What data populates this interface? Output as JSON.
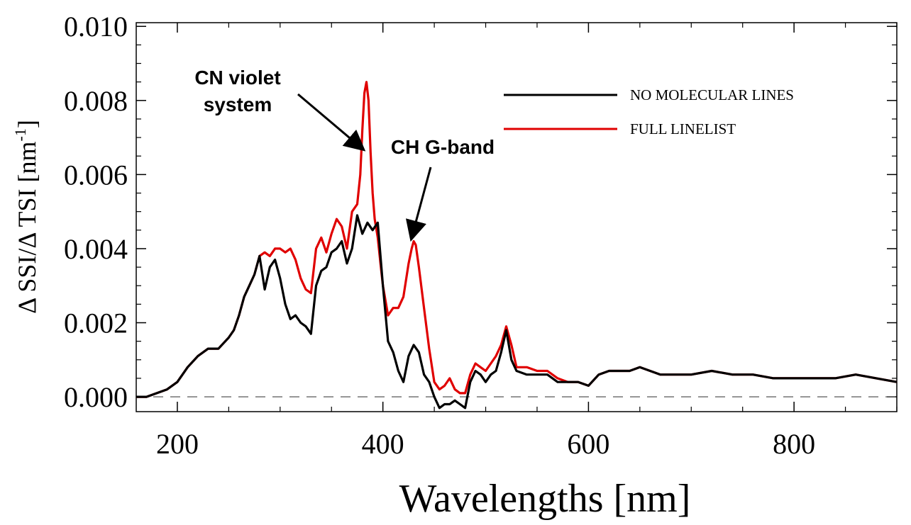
{
  "chart_data": {
    "type": "line",
    "xlabel": "Wavelengths [nm]",
    "ylabel": "Δ SSI/Δ TSI [nm",
    "ylabel_sup": "-1",
    "ylabel_end": "]",
    "xlim": [
      160,
      900
    ],
    "ylim": [
      -0.0004,
      0.0101
    ],
    "x_ticks": [
      200,
      400,
      600,
      800
    ],
    "y_ticks": [
      0.0,
      0.002,
      0.004,
      0.006,
      0.008,
      0.01
    ],
    "x_tick_labels": [
      "200",
      "400",
      "600",
      "800"
    ],
    "y_tick_labels": [
      "0.000",
      "0.002",
      "0.004",
      "0.006",
      "0.008",
      "0.010"
    ],
    "zero_line": {
      "y": 0,
      "style": "dashed"
    },
    "legend_position": "top-right",
    "series": [
      {
        "name": "NO MOLECULAR LINES",
        "color": "#000000",
        "x": [
          160,
          170,
          180,
          190,
          200,
          210,
          220,
          230,
          240,
          250,
          255,
          260,
          265,
          270,
          275,
          280,
          285,
          290,
          295,
          300,
          305,
          310,
          315,
          320,
          325,
          330,
          335,
          340,
          345,
          350,
          355,
          360,
          365,
          370,
          375,
          380,
          385,
          390,
          395,
          400,
          405,
          410,
          415,
          420,
          425,
          430,
          435,
          440,
          445,
          450,
          455,
          460,
          465,
          470,
          475,
          480,
          485,
          490,
          495,
          500,
          505,
          510,
          515,
          520,
          525,
          530,
          540,
          550,
          560,
          570,
          580,
          590,
          600,
          610,
          620,
          630,
          640,
          650,
          660,
          670,
          680,
          700,
          720,
          740,
          760,
          780,
          800,
          820,
          840,
          860,
          880,
          900
        ],
        "y": [
          0.0,
          0.0,
          0.0001,
          0.0002,
          0.0004,
          0.0008,
          0.0011,
          0.0013,
          0.0013,
          0.0016,
          0.0018,
          0.0022,
          0.0027,
          0.003,
          0.0033,
          0.0038,
          0.0029,
          0.0035,
          0.0037,
          0.0032,
          0.0025,
          0.0021,
          0.0022,
          0.002,
          0.0019,
          0.0017,
          0.003,
          0.0034,
          0.0035,
          0.0039,
          0.004,
          0.0042,
          0.0036,
          0.004,
          0.0049,
          0.0044,
          0.0047,
          0.0045,
          0.0047,
          0.003,
          0.0015,
          0.0012,
          0.0007,
          0.0004,
          0.0011,
          0.0014,
          0.0012,
          0.0006,
          0.0004,
          0.0,
          -0.0003,
          -0.0002,
          -0.0002,
          -0.0001,
          -0.0002,
          -0.0003,
          0.0004,
          0.0007,
          0.0006,
          0.0004,
          0.0006,
          0.0007,
          0.0012,
          0.0018,
          0.001,
          0.0007,
          0.0006,
          0.0006,
          0.0006,
          0.0004,
          0.0004,
          0.0004,
          0.0003,
          0.0006,
          0.0007,
          0.0007,
          0.0007,
          0.0008,
          0.0007,
          0.0006,
          0.0006,
          0.0006,
          0.0007,
          0.0006,
          0.0006,
          0.0005,
          0.0005,
          0.0005,
          0.0005,
          0.0006,
          0.0005,
          0.0004
        ]
      },
      {
        "name": "FULL LINELIST",
        "color": "#e00000",
        "x": [
          160,
          170,
          180,
          190,
          200,
          210,
          220,
          230,
          240,
          250,
          255,
          260,
          265,
          270,
          275,
          280,
          285,
          290,
          295,
          300,
          305,
          310,
          315,
          320,
          325,
          330,
          335,
          340,
          345,
          350,
          355,
          360,
          365,
          370,
          375,
          378,
          380,
          382,
          384,
          386,
          388,
          390,
          392,
          395,
          398,
          400,
          405,
          410,
          415,
          420,
          425,
          428,
          430,
          432,
          435,
          440,
          445,
          450,
          455,
          460,
          465,
          470,
          475,
          480,
          485,
          490,
          495,
          500,
          505,
          510,
          515,
          520,
          525,
          530,
          540,
          550,
          560,
          570,
          580,
          590,
          600,
          610,
          620,
          630,
          640,
          650,
          660,
          670,
          680,
          700,
          720,
          740,
          760,
          780,
          800,
          820,
          840,
          860,
          880,
          900
        ],
        "y": [
          0.0,
          0.0,
          0.0001,
          0.0002,
          0.0004,
          0.0008,
          0.0011,
          0.0013,
          0.0013,
          0.0016,
          0.0018,
          0.0022,
          0.0027,
          0.003,
          0.0033,
          0.0038,
          0.0039,
          0.0038,
          0.004,
          0.004,
          0.0039,
          0.004,
          0.0037,
          0.0032,
          0.0029,
          0.0028,
          0.004,
          0.0043,
          0.0039,
          0.0044,
          0.0048,
          0.0046,
          0.004,
          0.005,
          0.0052,
          0.006,
          0.0072,
          0.0082,
          0.0085,
          0.008,
          0.0066,
          0.0055,
          0.0048,
          0.0043,
          0.0035,
          0.003,
          0.0022,
          0.0024,
          0.0024,
          0.0027,
          0.0036,
          0.004,
          0.0042,
          0.0041,
          0.0035,
          0.0024,
          0.0013,
          0.0004,
          0.0002,
          0.0003,
          0.0005,
          0.0002,
          0.0001,
          0.0001,
          0.0006,
          0.0009,
          0.0008,
          0.0007,
          0.0009,
          0.0011,
          0.0014,
          0.0019,
          0.0014,
          0.0008,
          0.0008,
          0.0007,
          0.0007,
          0.0005,
          0.0004,
          0.0004,
          0.0003,
          0.0006,
          0.0007,
          0.0007,
          0.0007,
          0.0008,
          0.0007,
          0.0006,
          0.0006,
          0.0006,
          0.0007,
          0.0006,
          0.0006,
          0.0005,
          0.0005,
          0.0005,
          0.0005,
          0.0006,
          0.0005,
          0.0004
        ]
      }
    ],
    "annotations": [
      {
        "lines": [
          "CN violet",
          "system"
        ],
        "arrow_to": [
          380,
          0.0067
        ]
      },
      {
        "lines": [
          "CH G-band"
        ],
        "arrow_to": [
          428,
          0.0043
        ]
      }
    ]
  }
}
